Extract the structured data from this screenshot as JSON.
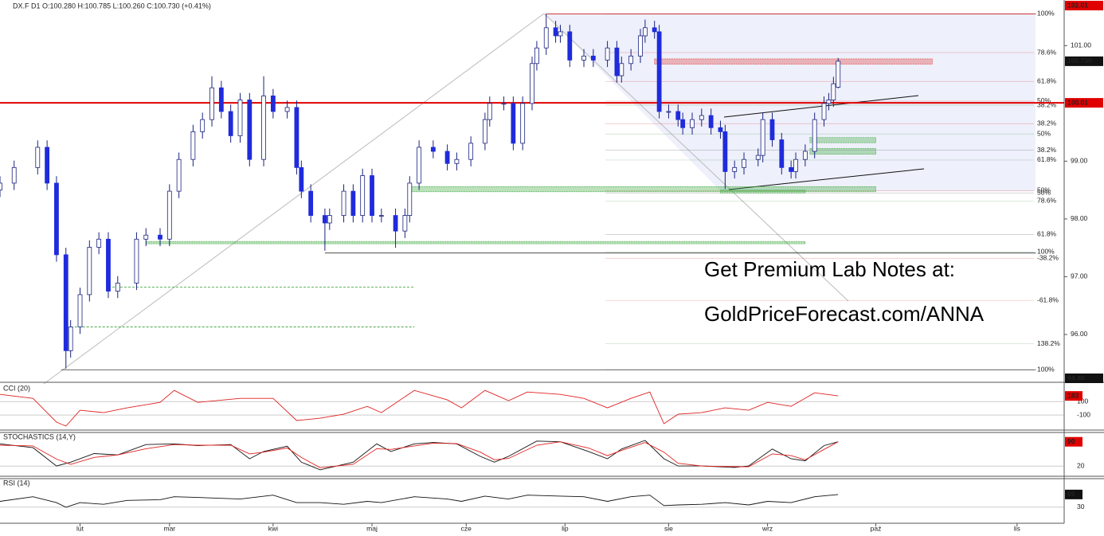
{
  "chart_data": [
    {
      "type": "candlestick",
      "title": "DX.F  D1  O:100.280  H:100.785  L:100.260  C:100.730  (+0.41%)",
      "x": [
        0,
        3,
        8,
        10,
        12,
        14,
        15,
        17,
        19,
        21,
        23,
        25,
        29,
        31,
        34,
        36,
        38,
        41,
        43,
        45,
        47,
        49,
        51,
        53,
        56,
        58,
        61,
        63,
        64,
        66,
        69,
        70,
        73,
        75,
        77,
        79,
        81,
        84,
        86,
        87,
        89,
        92,
        95,
        97,
        100,
        103,
        104,
        107,
        109,
        111,
        113,
        114,
        116,
        118,
        119,
        121,
        124,
        126,
        129,
        131,
        132,
        134,
        136,
        137,
        139,
        140,
        142,
        144,
        145,
        147,
        149,
        151,
        153,
        154,
        156,
        158,
        161,
        162,
        164,
        166,
        168,
        169,
        171,
        173,
        175,
        176,
        177,
        178
      ],
      "open": [
        98.5,
        98.62,
        98.89,
        99.24,
        98.62,
        97.38,
        95.72,
        96.13,
        96.69,
        97.51,
        97.65,
        96.75,
        96.89,
        97.65,
        97.72,
        97.65,
        98.48,
        99.03,
        99.51,
        99.72,
        100.27,
        99.86,
        99.44,
        100.06,
        99.03,
        100.13,
        99.86,
        99.93,
        98.89,
        98.48,
        98.06,
        97.93,
        98.06,
        98.48,
        98.06,
        98.75,
        98.06,
        98.06,
        97.79,
        98.06,
        98.62,
        99.24,
        99.17,
        98.96,
        99.03,
        99.31,
        99.72,
        100.0,
        100.0,
        99.31,
        100.0,
        100.69,
        100.96,
        101.31,
        101.17,
        101.24,
        100.75,
        100.82,
        100.75,
        100.96,
        100.48,
        100.69,
        100.82,
        101.17,
        101.31,
        101.24,
        99.86,
        99.86,
        99.72,
        99.58,
        99.72,
        99.79,
        99.58,
        99.51,
        98.82,
        98.89,
        99.03,
        99.1,
        99.72,
        99.37,
        98.89,
        98.82,
        99.03,
        99.17,
        99.72,
        100.0,
        100.06,
        100.28
      ],
      "high": [
        98.74,
        99.01,
        99.36,
        99.36,
        98.74,
        97.5,
        96.25,
        96.81,
        97.63,
        97.77,
        97.77,
        97.01,
        97.77,
        97.84,
        97.84,
        98.6,
        99.15,
        99.63,
        99.84,
        100.47,
        100.39,
        99.98,
        100.18,
        100.18,
        100.47,
        100.25,
        100.05,
        100.05,
        99.01,
        98.6,
        98.18,
        98.18,
        98.6,
        98.6,
        98.87,
        98.87,
        98.18,
        98.18,
        98.18,
        98.74,
        99.36,
        99.36,
        99.29,
        99.15,
        99.43,
        99.84,
        100.12,
        100.12,
        100.12,
        100.12,
        100.81,
        101.08,
        101.55,
        101.43,
        101.36,
        101.36,
        100.94,
        100.94,
        101.08,
        101.08,
        100.81,
        100.94,
        101.29,
        101.45,
        101.43,
        101.36,
        99.98,
        99.98,
        99.84,
        99.84,
        99.91,
        99.91,
        99.7,
        99.63,
        99.01,
        99.15,
        99.22,
        99.84,
        99.84,
        99.49,
        99.01,
        99.15,
        99.29,
        99.84,
        100.12,
        100.18,
        100.46,
        100.785
      ],
      "low": [
        98.38,
        98.5,
        98.77,
        98.5,
        97.26,
        95.41,
        95.6,
        96.01,
        96.57,
        97.39,
        96.63,
        96.63,
        96.77,
        97.53,
        97.53,
        97.53,
        98.36,
        98.91,
        99.39,
        99.6,
        99.74,
        99.32,
        99.32,
        98.91,
        98.91,
        99.74,
        99.74,
        98.77,
        98.36,
        97.94,
        97.45,
        97.81,
        97.94,
        97.94,
        97.94,
        97.94,
        97.94,
        97.5,
        97.67,
        97.94,
        98.5,
        99.05,
        98.84,
        98.84,
        98.91,
        99.19,
        99.6,
        99.88,
        99.19,
        99.19,
        99.88,
        100.57,
        100.84,
        101.05,
        101.05,
        100.63,
        100.63,
        100.63,
        100.63,
        100.36,
        100.36,
        100.57,
        100.7,
        101.05,
        101.12,
        99.74,
        99.74,
        99.6,
        99.46,
        99.46,
        99.6,
        99.46,
        99.39,
        98.52,
        98.7,
        98.77,
        98.91,
        98.98,
        99.25,
        98.77,
        98.7,
        98.7,
        98.91,
        99.05,
        99.6,
        99.88,
        99.94,
        100.26
      ],
      "close": [
        98.62,
        98.89,
        99.24,
        98.62,
        97.38,
        95.72,
        96.13,
        96.69,
        97.51,
        97.65,
        96.75,
        96.89,
        97.65,
        97.72,
        97.65,
        98.48,
        99.03,
        99.51,
        99.72,
        100.27,
        99.86,
        99.44,
        100.06,
        99.03,
        100.13,
        99.86,
        99.93,
        98.89,
        98.48,
        98.06,
        97.93,
        98.06,
        98.48,
        98.06,
        98.75,
        98.06,
        98.06,
        97.79,
        98.06,
        98.62,
        99.24,
        99.17,
        98.96,
        99.03,
        99.31,
        99.72,
        100.0,
        100.0,
        99.31,
        100.0,
        100.69,
        100.96,
        101.31,
        101.17,
        101.24,
        100.75,
        100.82,
        100.75,
        100.96,
        100.48,
        100.69,
        100.82,
        101.17,
        101.31,
        101.24,
        99.86,
        99.86,
        99.72,
        99.58,
        99.72,
        99.79,
        99.58,
        99.51,
        98.82,
        98.89,
        99.03,
        99.1,
        99.72,
        99.37,
        98.89,
        98.82,
        99.03,
        99.17,
        99.72,
        100.0,
        100.06,
        100.34,
        100.73
      ],
      "up_color": "#ffffff",
      "down_color": "#1f2bdc",
      "outline_color": "#1a237e",
      "xlim": [
        0,
        226
      ],
      "ylim": [
        95.2,
        101.79
      ],
      "xticks": [
        {
          "value": 17,
          "label": "lut"
        },
        {
          "value": 36,
          "label": "mar"
        },
        {
          "value": 58,
          "label": "kwi"
        },
        {
          "value": 79,
          "label": "maj"
        },
        {
          "value": 99,
          "label": "cze"
        },
        {
          "value": 120,
          "label": "lip"
        },
        {
          "value": 142,
          "label": "sie"
        },
        {
          "value": 163,
          "label": "wrz"
        },
        {
          "value": 186,
          "label": "paź"
        },
        {
          "value": 216,
          "label": "lis"
        }
      ],
      "yticks": [
        {
          "value": 101,
          "label": "101.00"
        },
        {
          "value": 99,
          "label": "99.00"
        },
        {
          "value": 98,
          "label": "98.00"
        },
        {
          "value": 97,
          "label": "97.00"
        },
        {
          "value": 96,
          "label": "96.00"
        }
      ],
      "price_labels": [
        {
          "value": 102.01,
          "label": "102.01",
          "color": "#e00000"
        },
        {
          "value": 100.73,
          "label": "100.730",
          "color": "#111111"
        },
        {
          "value": 100.01,
          "label": "100.01",
          "color": "#e00000"
        },
        {
          "value": 94.4,
          "label": "94.40",
          "color": "#111111"
        }
      ],
      "fib_labels": [
        {
          "price": 101.55,
          "text": "100%",
          "color": "#d00000"
        },
        {
          "price": 100.88,
          "text": "78.6%",
          "color": "#d00000"
        },
        {
          "price": 100.38,
          "text": "61.8%",
          "color": "#d00000"
        },
        {
          "price": 100.04,
          "text": "50%",
          "color": "#d00000"
        },
        {
          "price": 99.97,
          "text": "38.2%",
          "color": "#1e7a1e"
        },
        {
          "price": 99.65,
          "text": "38.2%",
          "color": "#d00000"
        },
        {
          "price": 99.47,
          "text": "50%",
          "color": "#1e7a1e"
        },
        {
          "price": 99.19,
          "text": "38.2%",
          "color": "#222222"
        },
        {
          "price": 99.02,
          "text": "61.8%",
          "color": "#1e7a1e"
        },
        {
          "price": 98.49,
          "text": "50%",
          "color": "#d00000"
        },
        {
          "price": 98.45,
          "text": "50%",
          "color": "#222222"
        },
        {
          "price": 98.31,
          "text": "78.6%",
          "color": "#1e7a1e"
        },
        {
          "price": 97.73,
          "text": "61.8%",
          "color": "#222222"
        },
        {
          "price": 97.43,
          "text": "100%",
          "color": "#1e7a1e"
        },
        {
          "price": 97.32,
          "text": "-38.2%",
          "color": "#d00000"
        },
        {
          "price": 96.59,
          "text": "-61.8%",
          "color": "#d00000"
        },
        {
          "price": 95.84,
          "text": "138.2%",
          "color": "#1e7a1e"
        },
        {
          "price": 95.39,
          "text": "100%",
          "color": "#222222"
        }
      ],
      "levels": [
        {
          "value": 100.01,
          "x": [
            0,
            226
          ],
          "color": "#e00000",
          "dash": false
        },
        {
          "value": 101.55,
          "x": [
            116,
            220
          ],
          "color": "#c00000",
          "dash": false
        },
        {
          "value": 97.41,
          "x": [
            69,
            220
          ],
          "color": "#333333",
          "dash": false
        },
        {
          "value": 95.39,
          "x": [
            13,
            220
          ],
          "color": "#333333",
          "dash": false
        },
        {
          "value": 96.82,
          "x": [
            23,
            88
          ],
          "color": "#2e9b2e",
          "dash": true
        },
        {
          "value": 96.13,
          "x": [
            15,
            88
          ],
          "color": "#2e9b2e",
          "dash": true
        }
      ],
      "zones": [
        {
          "x": [
            87,
            186
          ],
          "y": [
            98.47,
            98.56
          ],
          "color": "#3da83d"
        },
        {
          "x": [
            139,
            198
          ],
          "y": [
            100.68,
            100.77
          ],
          "color": "#e04040"
        },
        {
          "x": [
            172,
            186
          ],
          "y": [
            99.32,
            99.41
          ],
          "color": "#3da83d"
        },
        {
          "x": [
            172,
            186
          ],
          "y": [
            99.12,
            99.22
          ],
          "color": "#3da83d"
        },
        {
          "x": [
            153,
            171
          ],
          "y": [
            98.45,
            98.5
          ],
          "color": "#3da83d"
        },
        {
          "x": [
            31,
            171
          ],
          "y": [
            97.57,
            97.61
          ],
          "color": "#3da83d"
        }
      ],
      "annotations": [
        "Get Premium Lab Notes at:",
        "GoldPriceForecast.com/ANNA"
      ]
    },
    {
      "type": "line",
      "title": "CCI (20)",
      "x": [
        0,
        7,
        12,
        14,
        17,
        22,
        27,
        34,
        37,
        42,
        51,
        58,
        63,
        68,
        73,
        78,
        81,
        88,
        95,
        98,
        103,
        108,
        112,
        119,
        124,
        129,
        134,
        138,
        141,
        144,
        149,
        154,
        159,
        163,
        168,
        173,
        178
      ],
      "series": [
        {
          "color": "#e02020",
          "values": [
            206,
            147,
            -206,
            -265,
            -29,
            -65,
            6,
            88,
            265,
            88,
            147,
            147,
            -182,
            -147,
            -88,
            29,
            -65,
            265,
            124,
            6,
            265,
            112,
            241,
            206,
            147,
            6,
            147,
            241,
            -229,
            -88,
            -65,
            6,
            -29,
            88,
            29,
            229,
            183
          ]
        }
      ],
      "xlim": [
        0,
        226
      ],
      "ylim": [
        -300,
        350
      ],
      "yticks": [
        100,
        -100
      ],
      "value_box": {
        "value": 183,
        "label": "183",
        "color": "#e00000"
      }
    },
    {
      "type": "line",
      "title": "STOCHASTICS (14,Y)",
      "x": [
        0,
        7,
        12,
        15,
        20,
        25,
        31,
        37,
        42,
        49,
        53,
        56,
        61,
        64,
        68,
        75,
        80,
        83,
        88,
        92,
        97,
        102,
        105,
        108,
        114,
        119,
        125,
        129,
        132,
        137,
        141,
        144,
        149,
        156,
        159,
        164,
        168,
        171,
        175,
        178
      ],
      "series": [
        {
          "color": "#111111",
          "values": [
            84,
            73,
            20,
            31,
            56,
            52,
            82,
            84,
            79,
            82,
            41,
            62,
            77,
            31,
            9,
            31,
            84,
            62,
            84,
            88,
            84,
            48,
            31,
            48,
            92,
            90,
            62,
            41,
            69,
            94,
            41,
            20,
            20,
            16,
            20,
            69,
            41,
            35,
            79,
            90
          ]
        },
        {
          "color": "#e02020",
          "values": [
            80,
            78,
            40,
            25,
            45,
            52,
            70,
            82,
            80,
            80,
            55,
            60,
            72,
            45,
            15,
            25,
            70,
            68,
            78,
            86,
            85,
            60,
            38,
            42,
            80,
            90,
            72,
            50,
            65,
            88,
            60,
            28,
            20,
            18,
            18,
            55,
            50,
            38,
            68,
            90
          ]
        }
      ],
      "xlim": [
        0,
        226
      ],
      "ylim": [
        -5,
        110
      ],
      "yticks": [
        20
      ],
      "value_box": {
        "value": 90,
        "label": "90",
        "color": "#e00000"
      }
    },
    {
      "type": "line",
      "title": "RSI (14)",
      "x": [
        0,
        7,
        12,
        14,
        17,
        22,
        27,
        34,
        37,
        42,
        51,
        58,
        63,
        68,
        73,
        78,
        81,
        88,
        95,
        98,
        103,
        108,
        112,
        119,
        124,
        129,
        134,
        138,
        141,
        144,
        149,
        154,
        159,
        163,
        168,
        173,
        178
      ],
      "series": [
        {
          "color": "#111111",
          "values": [
            48,
            62,
            44,
            30,
            44,
            39,
            51,
            53,
            62,
            60,
            55,
            67,
            44,
            44,
            39,
            48,
            44,
            62,
            55,
            48,
            64,
            55,
            67,
            64,
            62,
            48,
            62,
            67,
            35,
            37,
            39,
            44,
            37,
            48,
            44,
            62,
            69
          ]
        }
      ],
      "xlim": [
        0,
        226
      ],
      "ylim": [
        -14,
        110
      ],
      "yticks": [
        30
      ],
      "value_box": {
        "value": 69,
        "label": "69",
        "color": "#111111"
      }
    }
  ]
}
